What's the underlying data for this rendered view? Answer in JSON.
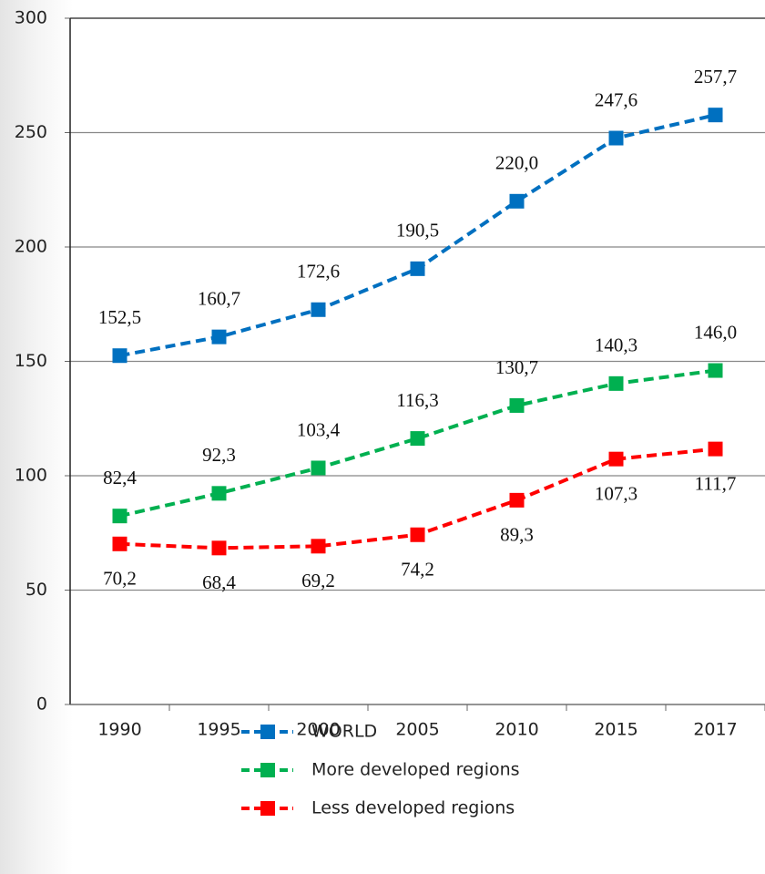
{
  "chart_data": {
    "type": "line",
    "categories": [
      "1990",
      "1995",
      "2000",
      "2005",
      "2010",
      "2015",
      "2017"
    ],
    "series": [
      {
        "name": "WORLD",
        "color": "#0070c0",
        "values": [
          152.5,
          160.7,
          172.6,
          190.5,
          220.0,
          247.6,
          257.7
        ],
        "value_labels": [
          "152,5",
          "160,7",
          "172,6",
          "190,5",
          "220,0",
          "247,6",
          "257,7"
        ]
      },
      {
        "name": "More developed regions",
        "color": "#00b050",
        "values": [
          82.4,
          92.3,
          103.4,
          116.3,
          130.7,
          140.3,
          146.0
        ],
        "value_labels": [
          "82,4",
          "92,3",
          "103,4",
          "116,3",
          "130,7",
          "140,3",
          "146,0"
        ]
      },
      {
        "name": "Less developed regions",
        "color": "#ff0000",
        "values": [
          70.2,
          68.4,
          69.2,
          74.2,
          89.3,
          107.3,
          111.7
        ],
        "value_labels": [
          "70,2",
          "68,4",
          "69,2",
          "74,2",
          "89,3",
          "107,3",
          "111,7"
        ]
      }
    ],
    "ylim": [
      0,
      300
    ],
    "yticks": [
      0,
      50,
      100,
      150,
      200,
      250,
      300
    ],
    "grid": true,
    "legend": "bottom"
  }
}
